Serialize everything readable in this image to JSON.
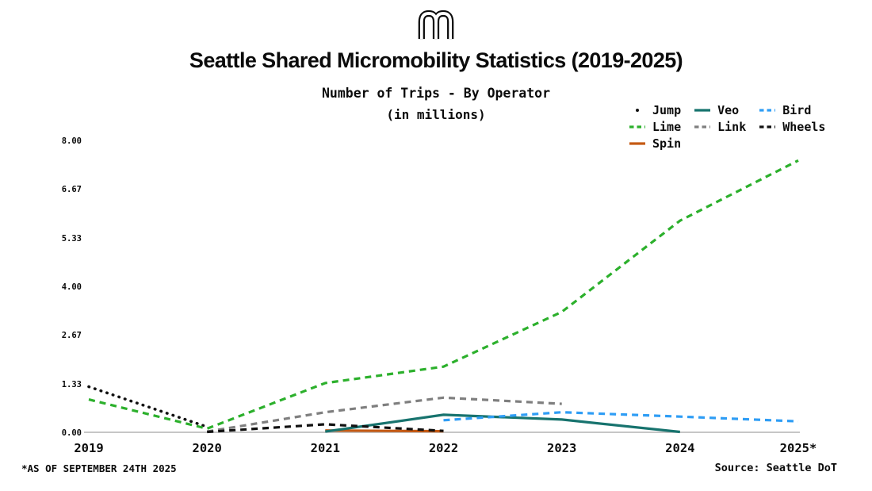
{
  "page": {
    "title": "Seattle Shared Micromobility Statistics (2019-2025)",
    "subtitle_line1": "Number of Trips - By Operator",
    "subtitle_line2": "(in millions)",
    "footnote": "*AS OF SEPTEMBER 24TH 2025",
    "source": "Source: Seattle DoT"
  },
  "chart_data": {
    "type": "line",
    "title": "Number of Trips - By Operator (in millions)",
    "xlabel": "",
    "ylabel": "",
    "xlim": [
      2019,
      2025
    ],
    "ylim": [
      0,
      8
    ],
    "grid": false,
    "legend_position": "top-right",
    "legend_order": [
      "Jump",
      "Veo",
      "Bird",
      "Lime",
      "Link",
      "Wheels",
      "Spin"
    ],
    "x_ticks": {
      "values": [
        2019,
        2020,
        2021,
        2022,
        2023,
        2024,
        2025
      ],
      "labels": [
        "2019",
        "2020",
        "2021",
        "2022",
        "2023",
        "2024",
        "2025*"
      ]
    },
    "y_ticks": {
      "values": [
        0,
        1.33,
        2.67,
        4.0,
        5.33,
        6.67,
        8.0
      ],
      "labels": [
        "0.00",
        "1.33",
        "2.67",
        "4.00",
        "5.33",
        "6.67",
        "8.00"
      ]
    },
    "series": [
      {
        "name": "Jump",
        "color": "#111111",
        "dash": "dotted",
        "points": [
          [
            2019,
            1.25
          ],
          [
            2020,
            0.15
          ]
        ]
      },
      {
        "name": "Lime",
        "color": "#2cb02c",
        "dash": "dashed",
        "points": [
          [
            2019,
            0.9
          ],
          [
            2020,
            0.1
          ],
          [
            2021,
            1.35
          ],
          [
            2022,
            1.8
          ],
          [
            2023,
            3.3
          ],
          [
            2024,
            5.8
          ],
          [
            2025,
            7.45
          ]
        ]
      },
      {
        "name": "Spin",
        "color": "#c55a14",
        "dash": "solid",
        "points": [
          [
            2021,
            0.05
          ],
          [
            2022,
            0.03
          ]
        ]
      },
      {
        "name": "Veo",
        "color": "#17736e",
        "dash": "solid",
        "points": [
          [
            2021,
            0.02
          ],
          [
            2022,
            0.48
          ],
          [
            2023,
            0.35
          ],
          [
            2024,
            0.01
          ]
        ]
      },
      {
        "name": "Link",
        "color": "#7f7f7f",
        "dash": "dashed",
        "points": [
          [
            2020,
            0.02
          ],
          [
            2021,
            0.55
          ],
          [
            2022,
            0.95
          ],
          [
            2023,
            0.78
          ]
        ]
      },
      {
        "name": "Bird",
        "color": "#2e9df5",
        "dash": "dashed",
        "points": [
          [
            2022,
            0.33
          ],
          [
            2023,
            0.55
          ],
          [
            2024,
            0.43
          ],
          [
            2025,
            0.3
          ]
        ]
      },
      {
        "name": "Wheels",
        "color": "#111111",
        "dash": "dashed",
        "points": [
          [
            2020,
            0.01
          ],
          [
            2021,
            0.22
          ],
          [
            2022,
            0.04
          ]
        ]
      }
    ]
  }
}
